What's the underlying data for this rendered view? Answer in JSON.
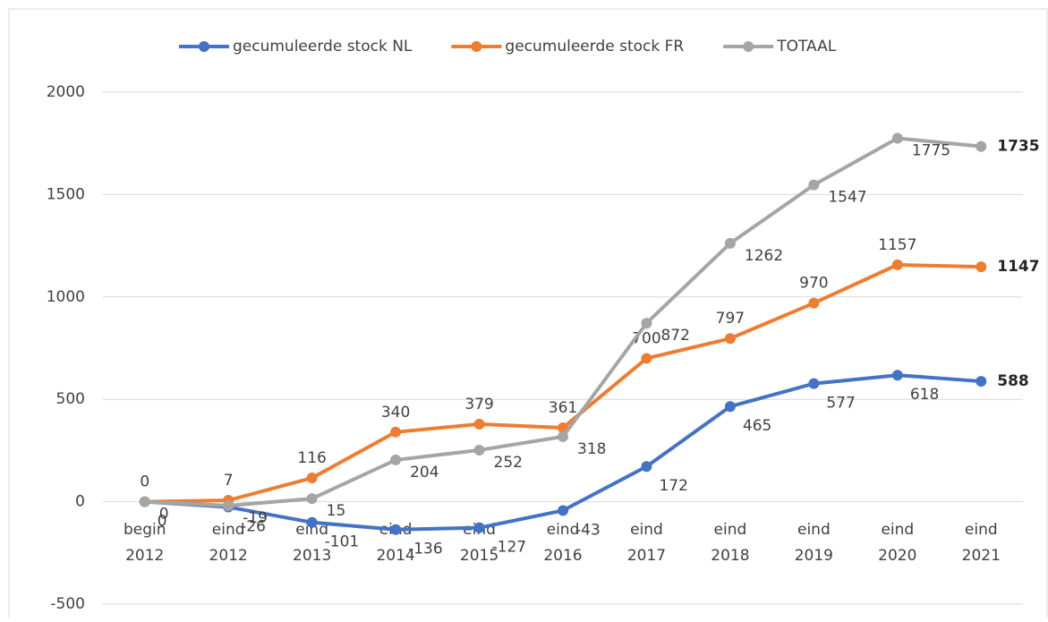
{
  "chart_data": {
    "type": "line",
    "categories": [
      "begin 2012",
      "eind 2012",
      "eind 2013",
      "eind 2014",
      "eind 2015",
      "eind 2016",
      "eind 2017",
      "eind 2018",
      "eind 2019",
      "eind 2020",
      "eind 2021"
    ],
    "series": [
      {
        "name": "gecumuleerde stock NL",
        "color": "#4472c4",
        "values": [
          0,
          -26,
          -101,
          -136,
          -127,
          -43,
          172,
          465,
          577,
          618,
          588
        ]
      },
      {
        "name": "gecumuleerde stock FR",
        "color": "#ed7d31",
        "values": [
          0,
          7,
          116,
          340,
          379,
          361,
          700,
          797,
          970,
          1157,
          1147
        ]
      },
      {
        "name": "TOTAAL",
        "color": "#a5a5a5",
        "values": [
          0,
          -19,
          15,
          204,
          252,
          318,
          872,
          1262,
          1547,
          1775,
          1735
        ]
      }
    ],
    "ylim": [
      -500,
      2000
    ],
    "yticks": [
      -500,
      0,
      500,
      1000,
      1500,
      2000
    ],
    "grid": true,
    "legend": "top",
    "bold_last_label": true
  }
}
